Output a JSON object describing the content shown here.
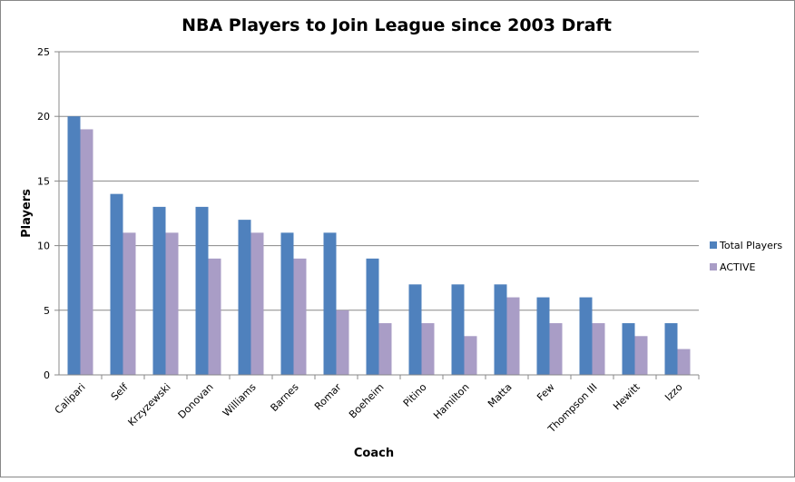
{
  "chart_data": {
    "type": "bar",
    "title": "NBA Players to Join League since 2003 Draft",
    "xlabel": "Coach",
    "ylabel": "Players",
    "ylim": [
      0,
      25
    ],
    "yticks": [
      "0",
      "5",
      "10",
      "15",
      "20",
      "25"
    ],
    "grid": true,
    "legend_position": "right",
    "categories": [
      "Calipari",
      "Self",
      "Krzyzewski",
      "Donovan",
      "Williams",
      "Barnes",
      "Romar",
      "Boeheim",
      "Pitino",
      "Hamilton",
      "Matta",
      "Few",
      "Thompson III",
      "Hewitt",
      "Izzo"
    ],
    "series": [
      {
        "name": "Total Players",
        "color": "#4F81BD",
        "values": [
          20,
          14,
          13,
          13,
          12,
          11,
          11,
          9,
          7,
          7,
          7,
          6,
          6,
          4,
          4
        ]
      },
      {
        "name": "ACTIVE",
        "color": "#A99DC6",
        "values": [
          19,
          11,
          11,
          9,
          11,
          9,
          5,
          4,
          4,
          3,
          6,
          4,
          4,
          3,
          2
        ]
      }
    ]
  }
}
